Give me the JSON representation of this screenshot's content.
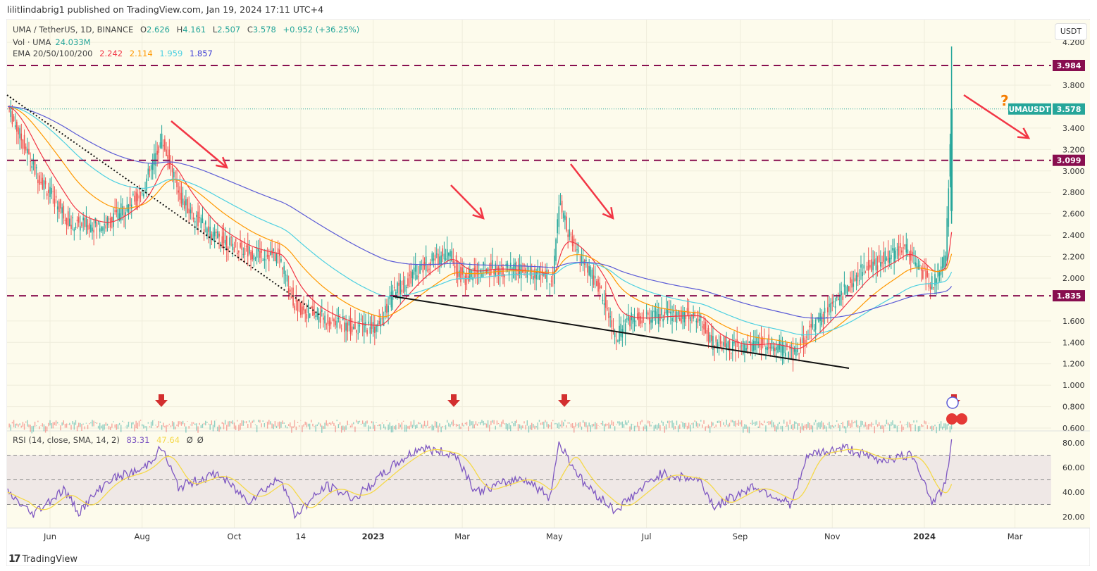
{
  "header": {
    "published": "lilitlindabrig1 published on TradingView.com, Jan 19, 2024 17:11 UTC+4"
  },
  "legend": {
    "symbol": "UMA / TetherUS, 1D, BINANCE",
    "open_label": "O",
    "open": "2.626",
    "high_label": "H",
    "high": "4.161",
    "low_label": "L",
    "low": "2.507",
    "close_label": "C",
    "close": "3.578",
    "change": "+0.952 (+36.25%)",
    "vol_label": "Vol · UMA",
    "vol": "24.033M",
    "ema_label": "EMA 20/50/100/200",
    "ema20": "2.242",
    "ema50": "2.114",
    "ema100": "1.959",
    "ema200": "1.857",
    "rsi_label": "RSI (14, close, SMA, 14, 2)",
    "rsi": "83.31",
    "rsi_sma": "47.64",
    "rsi_extra1": "Ø",
    "rsi_extra2": "Ø"
  },
  "currency_button": "USDT",
  "symbol_tag": "UMAUSDT",
  "price_tag": "3.578",
  "question_mark": "?",
  "footer": {
    "logo": "TradingView"
  },
  "colors": {
    "bg": "#fdfbec",
    "up": "#26a69a",
    "down": "#ef5350",
    "ema20": "#f23645",
    "ema50": "#ff9800",
    "ema100": "#4dd0e1",
    "ema200": "#5b5bd6",
    "level": "#880e4f",
    "rsi": "#7e57c2",
    "rsi_sma": "#f5d94a",
    "arrow": "#f23645"
  },
  "chart_data": {
    "type": "line",
    "title": "UMA / TetherUS, 1D, BINANCE",
    "ylim": [
      0.6,
      4.2
    ],
    "y_ticks": [
      "4.200",
      "3.800",
      "3.400",
      "3.200",
      "3.000",
      "2.800",
      "2.600",
      "2.400",
      "2.200",
      "2.000",
      "1.600",
      "1.400",
      "1.200",
      "1.000",
      "0.800",
      "0.600"
    ],
    "x_ticks": [
      [
        "2022-06-01",
        "Jun"
      ],
      [
        "2022-08-01",
        "Aug"
      ],
      [
        "2022-10-01",
        "Oct"
      ],
      [
        "2022-11-14",
        "14"
      ],
      [
        "2023-01-01",
        "2023"
      ],
      [
        "2023-03-01",
        "Mar"
      ],
      [
        "2023-05-01",
        "May"
      ],
      [
        "2023-07-01",
        "Jul"
      ],
      [
        "2023-09-01",
        "Sep"
      ],
      [
        "2023-11-01",
        "Nov"
      ],
      [
        "2024-01-01",
        "2024"
      ],
      [
        "2024-03-01",
        "Mar"
      ]
    ],
    "levels": [
      {
        "value": 3.984,
        "label": "3.984"
      },
      {
        "value": 3.099,
        "label": "3.099"
      },
      {
        "value": 1.835,
        "label": "1.835"
      }
    ],
    "close_series": [
      [
        "2022-05-04",
        3.6
      ],
      [
        "2022-05-22",
        3.0
      ],
      [
        "2022-06-15",
        2.5
      ],
      [
        "2022-07-08",
        2.5
      ],
      [
        "2022-08-01",
        2.8
      ],
      [
        "2022-08-14",
        3.3
      ],
      [
        "2022-08-28",
        2.7
      ],
      [
        "2022-09-16",
        2.4
      ],
      [
        "2022-10-09",
        2.25
      ],
      [
        "2022-10-31",
        2.2
      ],
      [
        "2022-11-10",
        1.75
      ],
      [
        "2022-11-24",
        1.65
      ],
      [
        "2022-12-17",
        1.55
      ],
      [
        "2023-01-05",
        1.55
      ],
      [
        "2023-01-14",
        1.85
      ],
      [
        "2023-02-01",
        2.1
      ],
      [
        "2023-02-20",
        2.25
      ],
      [
        "2023-03-01",
        2.0
      ],
      [
        "2023-03-19",
        2.1
      ],
      [
        "2023-04-16",
        2.05
      ],
      [
        "2023-04-30",
        2.0
      ],
      [
        "2023-05-04",
        2.7
      ],
      [
        "2023-05-13",
        2.3
      ],
      [
        "2023-05-27",
        2.0
      ],
      [
        "2023-06-06",
        1.7
      ],
      [
        "2023-06-10",
        1.45
      ],
      [
        "2023-06-19",
        1.6
      ],
      [
        "2023-07-12",
        1.65
      ],
      [
        "2023-08-04",
        1.65
      ],
      [
        "2023-08-13",
        1.4
      ],
      [
        "2023-09-01",
        1.35
      ],
      [
        "2023-09-19",
        1.4
      ],
      [
        "2023-10-07",
        1.3
      ],
      [
        "2023-10-16",
        1.5
      ],
      [
        "2023-11-04",
        1.8
      ],
      [
        "2023-11-22",
        2.1
      ],
      [
        "2023-12-10",
        2.2
      ],
      [
        "2023-12-19",
        2.3
      ],
      [
        "2023-12-28",
        2.1
      ],
      [
        "2024-01-06",
        1.95
      ],
      [
        "2024-01-15",
        2.2
      ],
      [
        "2024-01-19",
        3.578
      ]
    ],
    "last_bar": {
      "date": "2024-01-19",
      "open": 2.626,
      "high": 4.161,
      "low": 2.507,
      "close": 3.578
    },
    "rsi": {
      "ylim": [
        15,
        85
      ],
      "ticks": [
        "80.00",
        "60.00",
        "40.00",
        "20.00"
      ],
      "bands": [
        30,
        50,
        70
      ],
      "values": [
        [
          "2022-05-04",
          40
        ],
        [
          "2022-05-20",
          22
        ],
        [
          "2022-06-10",
          42
        ],
        [
          "2022-06-20",
          24
        ],
        [
          "2022-07-10",
          50
        ],
        [
          "2022-08-01",
          58
        ],
        [
          "2022-08-14",
          76
        ],
        [
          "2022-08-25",
          44
        ],
        [
          "2022-09-20",
          55
        ],
        [
          "2022-10-10",
          33
        ],
        [
          "2022-11-01",
          52
        ],
        [
          "2022-11-10",
          21
        ],
        [
          "2022-12-01",
          45
        ],
        [
          "2022-12-20",
          35
        ],
        [
          "2023-01-15",
          62
        ],
        [
          "2023-02-01",
          76
        ],
        [
          "2023-02-25",
          70
        ],
        [
          "2023-03-10",
          40
        ],
        [
          "2023-04-10",
          52
        ],
        [
          "2023-04-28",
          36
        ],
        [
          "2023-05-04",
          80
        ],
        [
          "2023-05-20",
          48
        ],
        [
          "2023-06-10",
          25
        ],
        [
          "2023-07-10",
          55
        ],
        [
          "2023-08-05",
          50
        ],
        [
          "2023-08-15",
          28
        ],
        [
          "2023-09-10",
          45
        ],
        [
          "2023-10-05",
          30
        ],
        [
          "2023-10-16",
          70
        ],
        [
          "2023-11-10",
          76
        ],
        [
          "2023-12-01",
          66
        ],
        [
          "2023-12-25",
          70
        ],
        [
          "2024-01-06",
          32
        ],
        [
          "2024-01-15",
          45
        ],
        [
          "2024-01-19",
          83.31
        ]
      ]
    }
  }
}
